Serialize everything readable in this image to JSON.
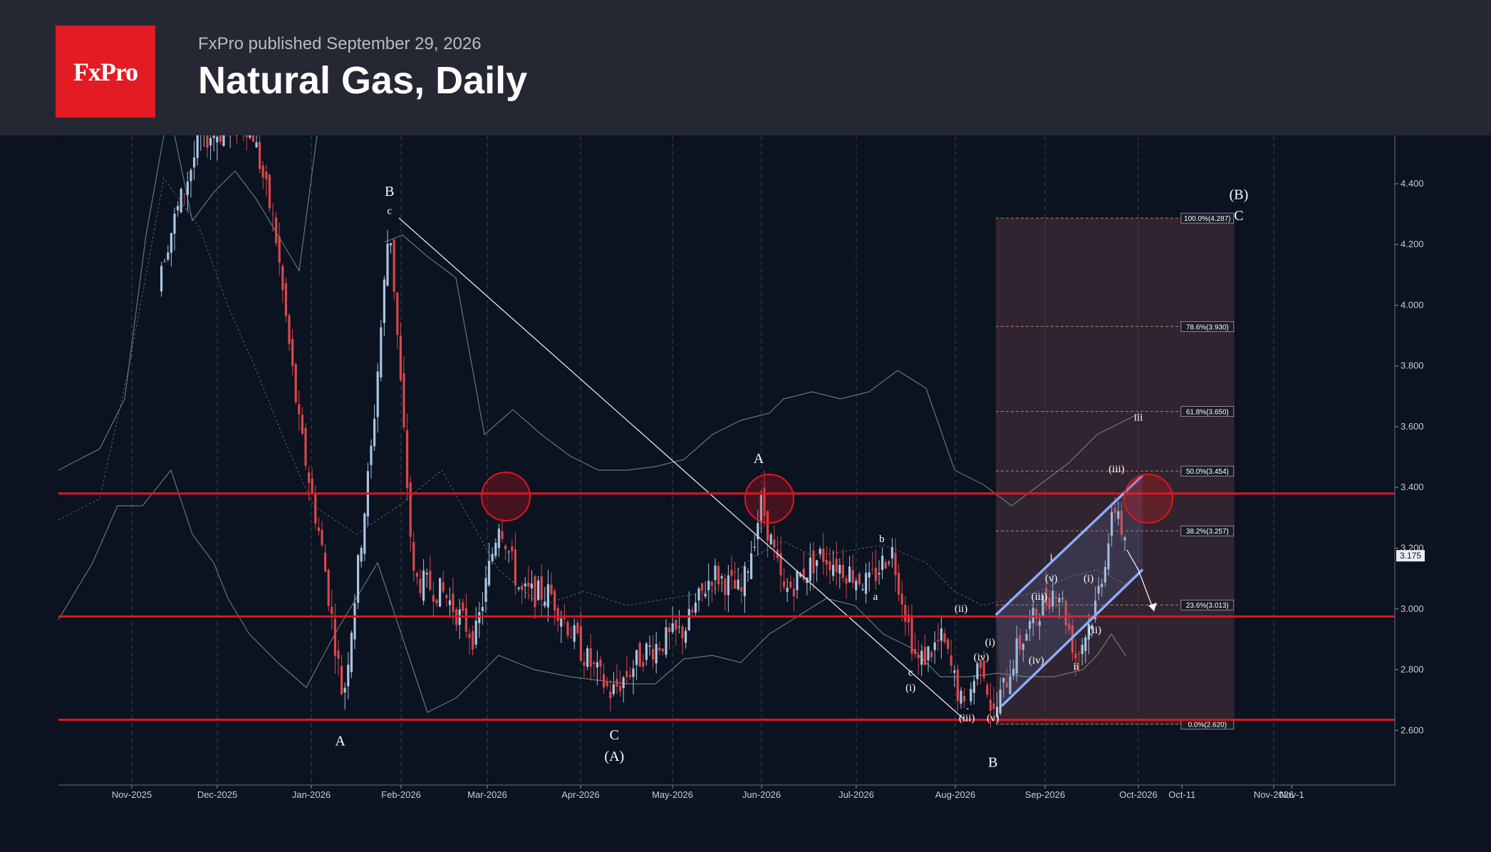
{
  "header": {
    "logo_text": "FxPro",
    "published": "FxPro published September 29, 2026",
    "title": "Natural Gas, Daily"
  },
  "colors": {
    "background": "#0d1320",
    "header_bg": "#252833",
    "logo_red": "#e31b23",
    "up_candle": "#a9c4e0",
    "down_candle": "#d9474a",
    "level_line": "#e0161d",
    "channel_line": "#8fb0ff",
    "bands": "#6e8e8a",
    "fib_box": "#5a3c44"
  },
  "chart_data": {
    "type": "candlestick",
    "title": "Natural Gas, Daily",
    "x_ticks": [
      "Nov-2025",
      "Dec-2025",
      "Jan-2026",
      "Feb-2026",
      "Mar-2026",
      "Apr-2026",
      "May-2026",
      "Jun-2026",
      "Jul-2026",
      "Aug-2026",
      "Sep-2026",
      "Oct-2026",
      "Oct-11",
      "Nov-2026",
      "Nov-1"
    ],
    "y_ticks": [
      "4.400",
      "4.200",
      "4.000",
      "3.800",
      "3.600",
      "3.400",
      "3.200",
      "3.000",
      "2.800",
      "2.600"
    ],
    "ylim": [
      2.42,
      4.55
    ],
    "current_price": "3.175",
    "horizontal_levels": [
      3.38,
      2.975,
      2.635
    ],
    "fibonacci": [
      {
        "label": "100.0%(4.287)",
        "value": 4.287
      },
      {
        "label": "78.6%(3.930)",
        "value": 3.93
      },
      {
        "label": "61.8%(3.650)",
        "value": 3.65
      },
      {
        "label": "50.0%(3.454)",
        "value": 3.454
      },
      {
        "label": "38.2%(3.257)",
        "value": 3.257
      },
      {
        "label": "23.6%(3.013)",
        "value": 3.013
      },
      {
        "label": "0.0%(2.620)",
        "value": 2.62
      }
    ],
    "wave_labels": [
      {
        "text": "B",
        "date": "2026-01-28",
        "value": 4.36
      },
      {
        "text": "c",
        "date": "2026-01-28",
        "value": 4.3
      },
      {
        "text": "A",
        "date": "2026-05-31",
        "value": 3.48
      },
      {
        "text": "(A)",
        "date": "2026-04-12",
        "value": 2.5
      },
      {
        "text": "C",
        "date": "2026-04-12",
        "value": 2.57
      },
      {
        "text": "A",
        "date": "2026-01-11",
        "value": 2.55
      },
      {
        "text": "B",
        "date": "2026-08-14",
        "value": 2.48
      },
      {
        "text": "(B)",
        "date": "2026-10-24",
        "value": 4.35
      },
      {
        "text": "C",
        "date": "2026-10-24",
        "value": 4.28
      },
      {
        "text": "iii",
        "date": "2026-10-01",
        "value": 3.62
      },
      {
        "text": "(iii)",
        "date": "2026-09-24",
        "value": 3.45
      },
      {
        "text": "b",
        "date": "2026-07-09",
        "value": 3.22
      },
      {
        "text": "a",
        "date": "2026-07-07",
        "value": 3.03
      },
      {
        "text": "c",
        "date": "2026-07-18",
        "value": 2.78
      },
      {
        "text": "(i)",
        "date": "2026-07-18",
        "value": 2.73
      },
      {
        "text": "(iii)",
        "date": "2026-08-05",
        "value": 2.63
      },
      {
        "text": "(v)",
        "date": "2026-08-14",
        "value": 2.63
      },
      {
        "text": "(iv)",
        "date": "2026-08-10",
        "value": 2.83
      },
      {
        "text": "(ii)",
        "date": "2026-08-03",
        "value": 2.99
      },
      {
        "text": "(i)",
        "date": "2026-08-13",
        "value": 2.88
      },
      {
        "text": "i",
        "date": "2026-09-03",
        "value": 3.16
      },
      {
        "text": "(iii)",
        "date": "2026-08-30",
        "value": 3.03
      },
      {
        "text": "(v)",
        "date": "2026-09-03",
        "value": 3.09
      },
      {
        "text": "(iv)",
        "date": "2026-08-29",
        "value": 2.82
      },
      {
        "text": "ii",
        "date": "2026-09-11",
        "value": 2.8
      },
      {
        "text": "(i)",
        "date": "2026-09-15",
        "value": 3.09
      },
      {
        "text": "(ii)",
        "date": "2026-09-17",
        "value": 2.92
      }
    ],
    "grid": "vertical dashed",
    "legend": "none"
  }
}
